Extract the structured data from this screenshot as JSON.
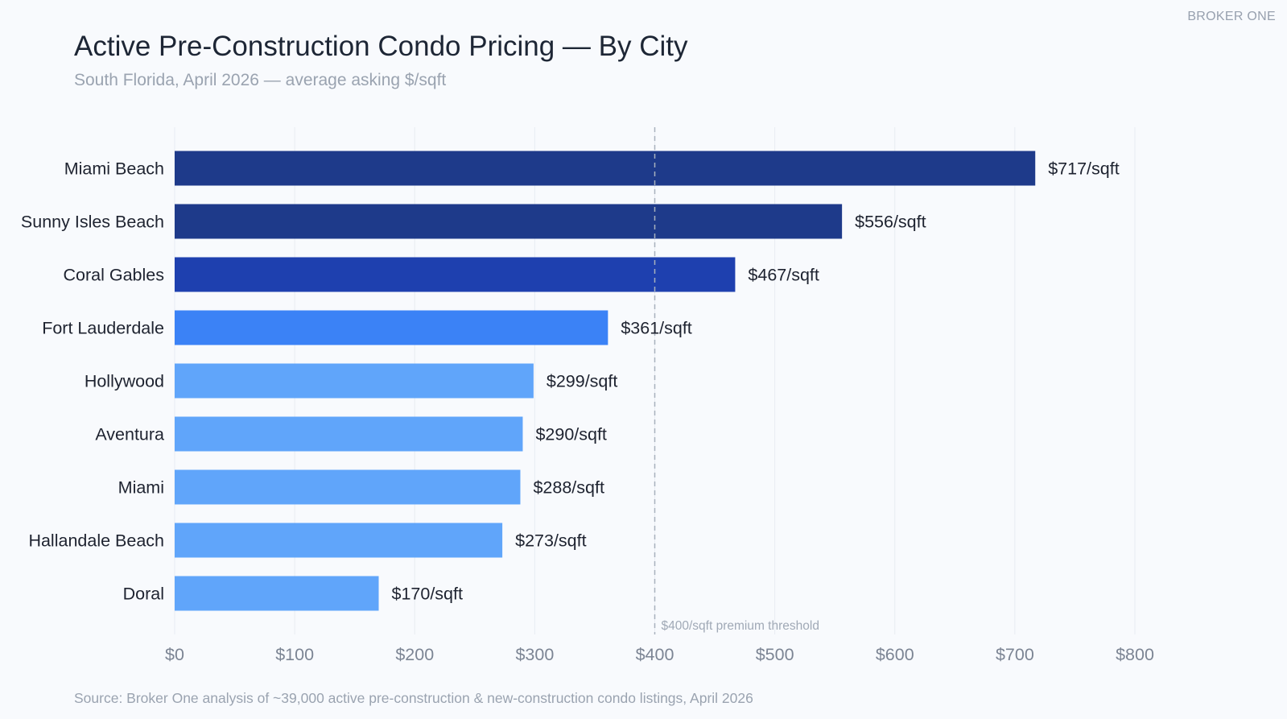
{
  "brand": "BROKER ONE",
  "header": {
    "title": "Active Pre-Construction Condo Pricing — By City",
    "subtitle": "South Florida, April 2026 — average asking $/sqft"
  },
  "footer": {
    "source": "Source: Broker One analysis of ~39,000 active pre-construction & new-construction condo listings, April 2026"
  },
  "chart_data": {
    "type": "bar",
    "orientation": "horizontal",
    "title": "Active Pre-Construction Condo Pricing — By City",
    "subtitle": "South Florida, April 2026 — average asking $/sqft",
    "categories": [
      "Miami Beach",
      "Sunny Isles Beach",
      "Coral Gables",
      "Fort Lauderdale",
      "Hollywood",
      "Aventura",
      "Miami",
      "Hallandale Beach",
      "Doral"
    ],
    "values": [
      717,
      556,
      467,
      361,
      299,
      290,
      288,
      273,
      170
    ],
    "value_labels": [
      "$717/sqft",
      "$556/sqft",
      "$467/sqft",
      "$361/sqft",
      "$299/sqft",
      "$290/sqft",
      "$288/sqft",
      "$273/sqft",
      "$170/sqft"
    ],
    "bar_colors": [
      "#1e3a8a",
      "#1e3a8a",
      "#1e40af",
      "#3b82f6",
      "#60a5fa",
      "#60a5fa",
      "#60a5fa",
      "#60a5fa",
      "#60a5fa"
    ],
    "xlim": [
      0,
      800
    ],
    "x_ticks": [
      0,
      100,
      200,
      300,
      400,
      500,
      600,
      700,
      800
    ],
    "x_tick_labels": [
      "$0",
      "$100",
      "$200",
      "$300",
      "$400",
      "$500",
      "$600",
      "$700",
      "$800"
    ],
    "grid": "vertical",
    "reference_line": {
      "value": 400,
      "label": "$400/sqft premium threshold",
      "style": "dashed"
    }
  }
}
